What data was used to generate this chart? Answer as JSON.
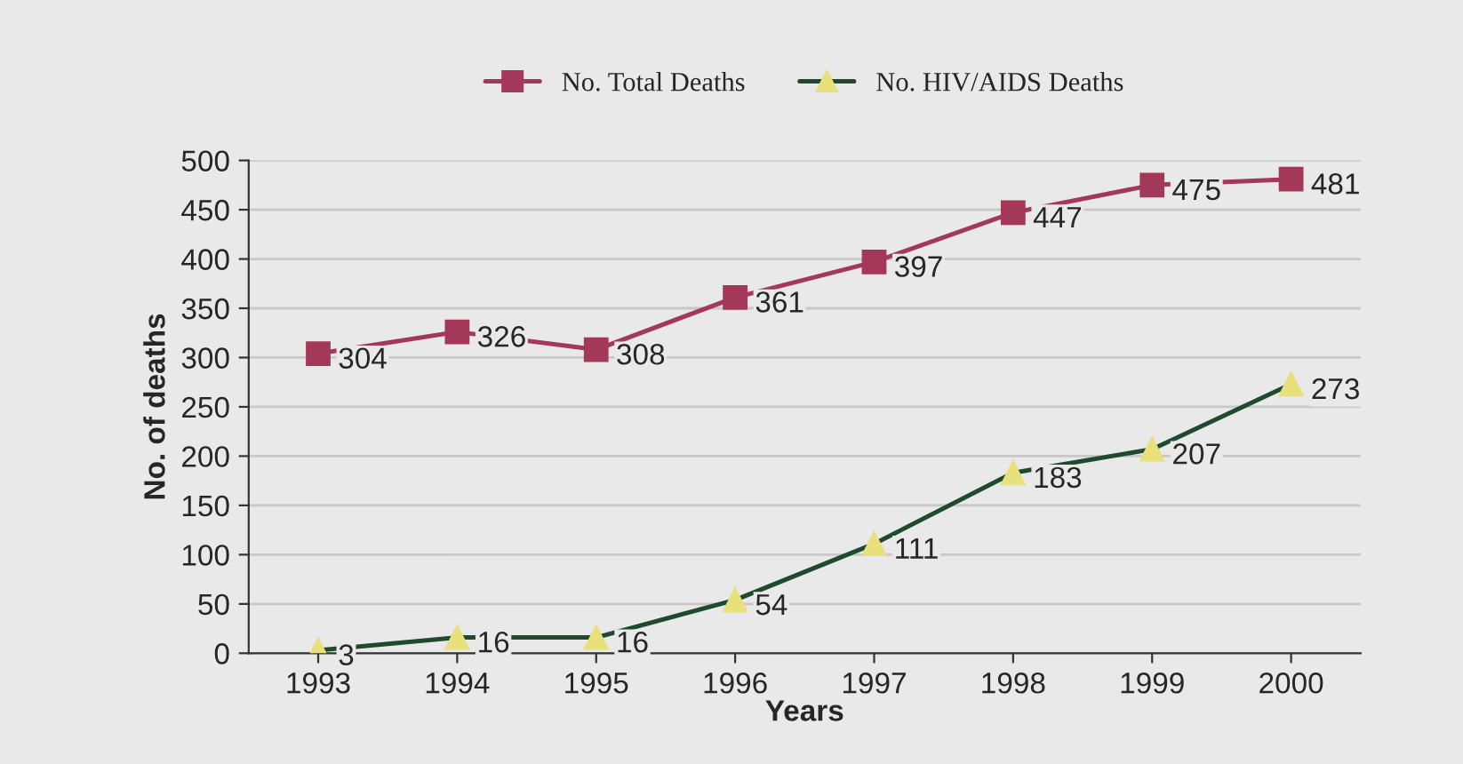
{
  "chart_data": {
    "type": "line",
    "xlabel": "Years",
    "ylabel": "No. of deaths",
    "categories": [
      "1993",
      "1994",
      "1995",
      "1996",
      "1997",
      "1998",
      "1999",
      "2000"
    ],
    "series": [
      {
        "name": "No. Total Deaths",
        "color": "#a3385a",
        "marker": "square",
        "values": [
          304,
          326,
          308,
          361,
          397,
          447,
          475,
          481
        ]
      },
      {
        "name": "No. HIV/AIDS Deaths",
        "color": "#1f4a2e",
        "colors": [
          "#e8e07a",
          "#e8e07a",
          "#e8e07a",
          "#e8e07a",
          "#e8e07a",
          "#e8e07a",
          "#e8e07a",
          "#e8e07a"
        ],
        "marker": "triangle",
        "values": [
          3,
          16,
          16,
          54,
          111,
          183,
          207,
          273
        ]
      }
    ],
    "ylim": [
      0,
      500
    ],
    "yticks": [
      0,
      50,
      100,
      150,
      200,
      250,
      300,
      350,
      400,
      450,
      500
    ],
    "grid": "y",
    "legend": "top",
    "data_labels": true
  }
}
